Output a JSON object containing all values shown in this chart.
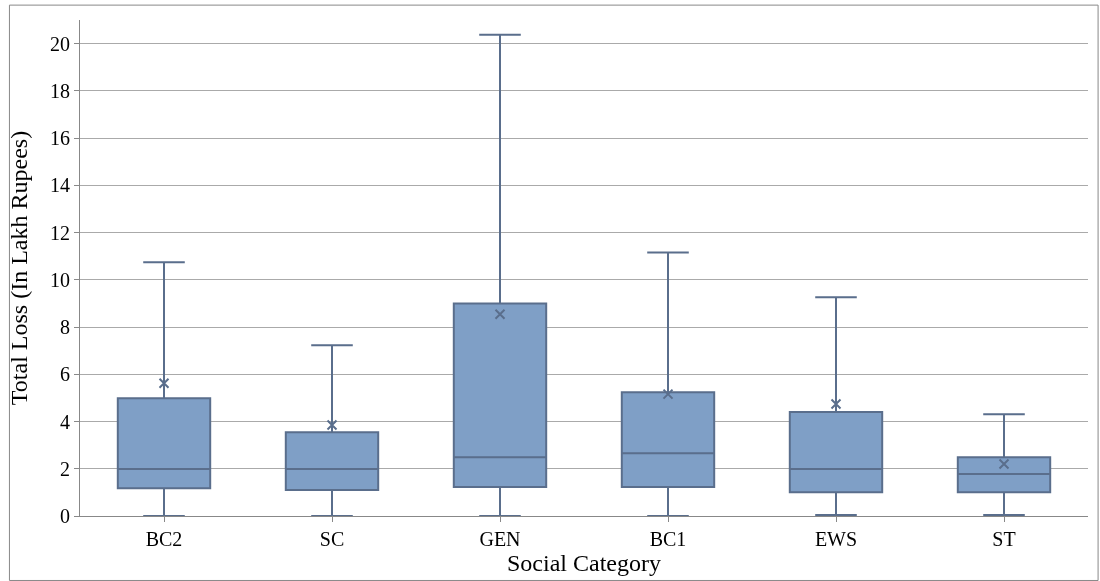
{
  "chart_data": {
    "type": "box",
    "xlabel": "Social Category",
    "ylabel": "Total Loss (In Lakh Rupees)",
    "categories": [
      "BC2",
      "SC",
      "GEN",
      "BC1",
      "EWS",
      "ST"
    ],
    "boxes": [
      {
        "low": 0,
        "q1": 1.18,
        "median": 1.99,
        "q3": 4.99,
        "high": 10.74,
        "mean": 5.62
      },
      {
        "low": 0,
        "q1": 1.1,
        "median": 1.99,
        "q3": 3.55,
        "high": 7.23,
        "mean": 3.85
      },
      {
        "low": 0,
        "q1": 1.23,
        "median": 2.49,
        "q3": 9.0,
        "high": 20.38,
        "mean": 8.54
      },
      {
        "low": 0,
        "q1": 1.23,
        "median": 2.66,
        "q3": 5.24,
        "high": 11.16,
        "mean": 5.16
      },
      {
        "low": 0.04,
        "q1": 1.01,
        "median": 1.99,
        "q3": 4.4,
        "high": 9.26,
        "mean": 4.74
      },
      {
        "low": 0.04,
        "q1": 1.01,
        "median": 1.78,
        "q3": 2.49,
        "high": 4.31,
        "mean": 2.2
      }
    ],
    "color": "#7f9fc6",
    "ylim": [
      0,
      21
    ],
    "yticks": [
      0,
      2,
      4,
      6,
      8,
      10,
      12,
      14,
      16,
      18,
      20
    ],
    "grid": "y"
  }
}
